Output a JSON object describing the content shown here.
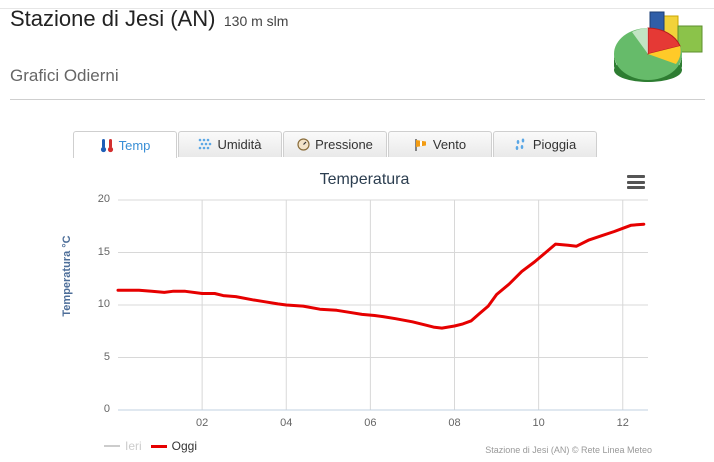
{
  "header": {
    "title": "Stazione di Jesi (AN)",
    "altitude": "130 m slm",
    "subtitle": "Grafici Odierni"
  },
  "tabs": [
    {
      "label": "Temp",
      "icon": "thermometer-icon",
      "active": true
    },
    {
      "label": "Umidità",
      "icon": "humidity-icon",
      "active": false
    },
    {
      "label": "Pressione",
      "icon": "barometer-icon",
      "active": false
    },
    {
      "label": "Vento",
      "icon": "windsock-icon",
      "active": false
    },
    {
      "label": "Pioggia",
      "icon": "rain-icon",
      "active": false
    }
  ],
  "colors": {
    "accent": "#3a8fd6",
    "oggi": "#e60000",
    "ieri": "#cccccc",
    "axis_title": "#4d6e99"
  },
  "chart_data": {
    "type": "line",
    "title": "Temperatura",
    "ylabel": "Temperatura °C",
    "xlabel": "",
    "ylim": [
      0,
      20
    ],
    "xlim": [
      0,
      12.6
    ],
    "yticks": [
      0,
      5,
      10,
      15,
      20
    ],
    "xticks": [
      2,
      4,
      6,
      8,
      10,
      12
    ],
    "xtick_labels": [
      "02",
      "04",
      "06",
      "08",
      "10",
      "12"
    ],
    "grid": true,
    "legend_position": "bottom-left",
    "legend": [
      {
        "name": "Ieri",
        "color": "#cccccc",
        "visible": false
      },
      {
        "name": "Oggi",
        "color": "#e60000",
        "visible": true
      }
    ],
    "series": [
      {
        "name": "Oggi",
        "x": [
          0.0,
          0.5,
          0.8,
          1.1,
          1.3,
          1.6,
          2.0,
          2.3,
          2.5,
          2.8,
          3.2,
          3.5,
          3.8,
          4.0,
          4.4,
          4.8,
          5.2,
          5.5,
          5.8,
          6.1,
          6.3,
          6.6,
          7.0,
          7.3,
          7.5,
          7.7,
          8.0,
          8.2,
          8.4,
          8.6,
          8.8,
          9.0,
          9.3,
          9.6,
          9.9,
          10.2,
          10.4,
          10.7,
          10.9,
          11.2,
          11.5,
          11.8,
          12.0,
          12.2,
          12.5
        ],
        "values": [
          11.4,
          11.4,
          11.3,
          11.2,
          11.3,
          11.3,
          11.1,
          11.1,
          10.9,
          10.8,
          10.5,
          10.3,
          10.1,
          10.0,
          9.9,
          9.6,
          9.5,
          9.3,
          9.1,
          9.0,
          8.9,
          8.7,
          8.4,
          8.1,
          7.9,
          7.8,
          8.0,
          8.2,
          8.5,
          9.2,
          9.9,
          11.0,
          12.0,
          13.2,
          14.1,
          15.1,
          15.8,
          15.7,
          15.6,
          16.2,
          16.6,
          17.0,
          17.3,
          17.6,
          17.7
        ]
      }
    ]
  },
  "footer": {
    "legend_ieri": "Ieri",
    "legend_oggi": "Oggi",
    "credits": "Stazione di Jesi (AN) © Rete Linea Meteo"
  }
}
